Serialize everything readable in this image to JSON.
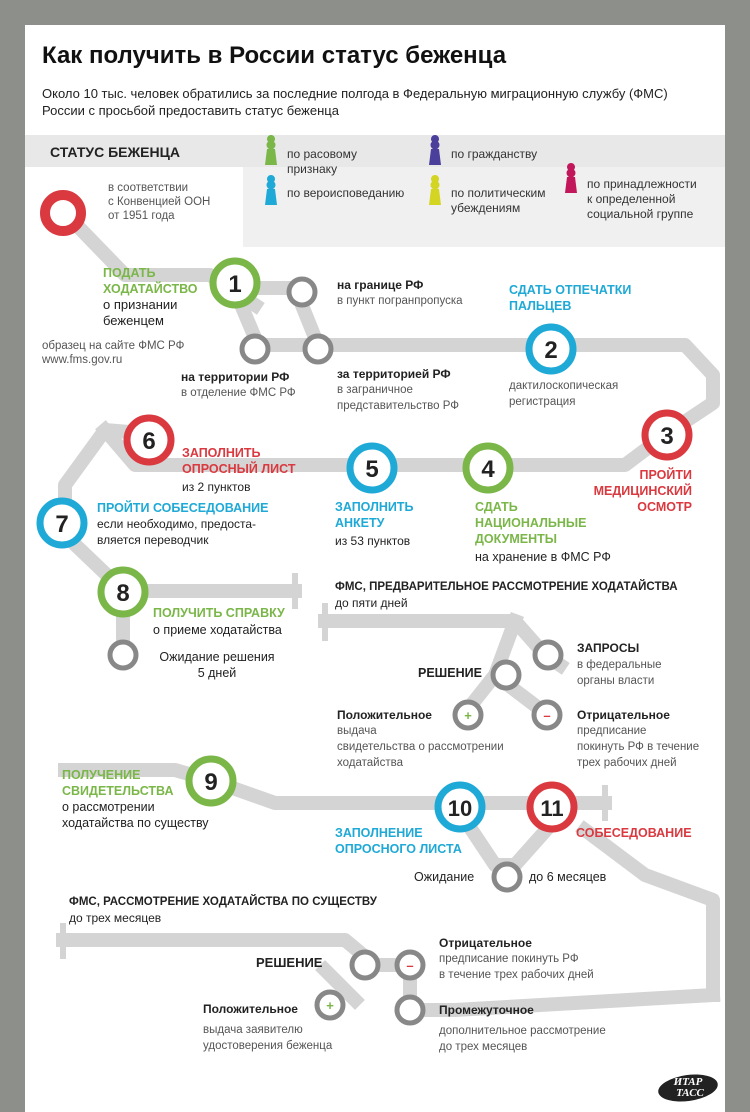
{
  "title": "Как получить в России статус беженца",
  "subtitle": "Около 10 тыс. человек обратились за последние полгода в Федеральную миграционную службу (ФМС) России с просьбой предоставить статус беженца",
  "legend": {
    "heading": "СТАТУС БЕЖЕНЦА",
    "items": [
      {
        "label": "по расовому\nпризнаку",
        "color": "#7ab648"
      },
      {
        "label": "по гражданству",
        "color": "#4a3f9a"
      },
      {
        "label": "по вероисповеданию",
        "color": "#1fa9d6"
      },
      {
        "label": "по политическим\nубеждениям",
        "color": "#d4d422"
      },
      {
        "label": "по принадлежности\nк определенной\nсоциальной группе",
        "color": "#c2185b"
      }
    ]
  },
  "colors": {
    "green": "#7ab648",
    "blue": "#1fa9d6",
    "red": "#d9393f",
    "track": "#d4d4d4",
    "stop": "#888888"
  },
  "start_note": "в соответствии\nс Конвенцией ООН\nот 1951 года",
  "steps": {
    "s1": {
      "num": "1",
      "title": "ПОДАТЬ\nХОДАТАЙСТВО",
      "text": "о признании\nбеженцем",
      "note": "образец на сайте ФМС РФ\nwww.fms.gov.ru"
    },
    "border": {
      "title": "на границе РФ",
      "text": "в пункт погранпропуска"
    },
    "inside": {
      "title": "на территории РФ",
      "text": "в отделение ФМС РФ"
    },
    "outside": {
      "title": "за территорией РФ",
      "text": "в заграничное\nпредставительство РФ"
    },
    "s2": {
      "num": "2",
      "title": "СДАТЬ ОТПЕЧАТКИ\nПАЛЬЦЕВ",
      "text": "дактилоскопическая\nрегистрация"
    },
    "s3": {
      "num": "3",
      "title": "ПРОЙТИ\nМЕДИЦИНСКИЙ\nОСМОТР"
    },
    "s4": {
      "num": "4",
      "title": "СДАТЬ\nНАЦИОНАЛЬНЫЕ\nДОКУМЕНТЫ",
      "text": "на хранение в ФМС РФ"
    },
    "s5": {
      "num": "5",
      "title": "ЗАПОЛНИТЬ\nАНКЕТУ",
      "text": "из 53 пунктов"
    },
    "s6": {
      "num": "6",
      "title": "ЗАПОЛНИТЬ\nОПРОСНЫЙ ЛИСТ",
      "text": "из 2 пунктов"
    },
    "s7": {
      "num": "7",
      "title": "ПРОЙТИ СОБЕСЕДОВАНИЕ",
      "text": "если необходимо, предоста-\nвляется переводчик"
    },
    "s8": {
      "num": "8",
      "title": "ПОЛУЧИТЬ СПРАВКУ",
      "text": "о приеме ходатайства"
    },
    "wait1": {
      "text": "Ожидание решения\n5 дней"
    },
    "s9": {
      "num": "9",
      "title": "ПОЛУЧЕНИЕ\nСВИДЕТЕЛЬСТВА",
      "text": "о рассмотрении\nходатайства по существу"
    },
    "s10": {
      "num": "10",
      "title": "ЗАПОЛНЕНИЕ\nОПРОСНОГО ЛИСТА"
    },
    "s11": {
      "num": "11",
      "title": "СОБЕСЕДОВАНИЕ"
    },
    "wait2": {
      "label": "Ожидание",
      "text": "до 6 месяцев"
    }
  },
  "prelim": {
    "title": "ФМС, ПРЕДВАРИТЕЛЬНОЕ РАССМОТРЕНИЕ ХОДАТАЙСТВА",
    "duration": "до пяти дней",
    "decision": "РЕШЕНИЕ",
    "requests_title": "ЗАПРОСЫ",
    "requests_text": "в федеральные\nорганы власти",
    "positive_title": "Положительное",
    "positive_text": "выдача\nсвидетельства о рассмотрении\nходатайства",
    "negative_title": "Отрицательное",
    "negative_text": "предписание\nпокинуть РФ в течение\nтрех рабочих дней"
  },
  "final": {
    "title": "ФМС, РАССМОТРЕНИЕ ХОДАТАЙСТВА ПО СУЩЕСТВУ",
    "duration": "до трех месяцев",
    "decision": "РЕШЕНИЕ",
    "negative_title": "Отрицательное",
    "negative_text": "предписание покинуть РФ\nв течение трех рабочих дней",
    "intermediate_title": "Промежуточное",
    "intermediate_text": "дополнительное рассмотрение\nдо трех месяцев",
    "positive_title": "Положительное",
    "positive_text": "выдача заявителю\nудостоверения беженца"
  },
  "signs": {
    "plus": "+",
    "minus": "–"
  },
  "logo": {
    "line1": "ИТАР",
    "line2": "ТАСС"
  }
}
